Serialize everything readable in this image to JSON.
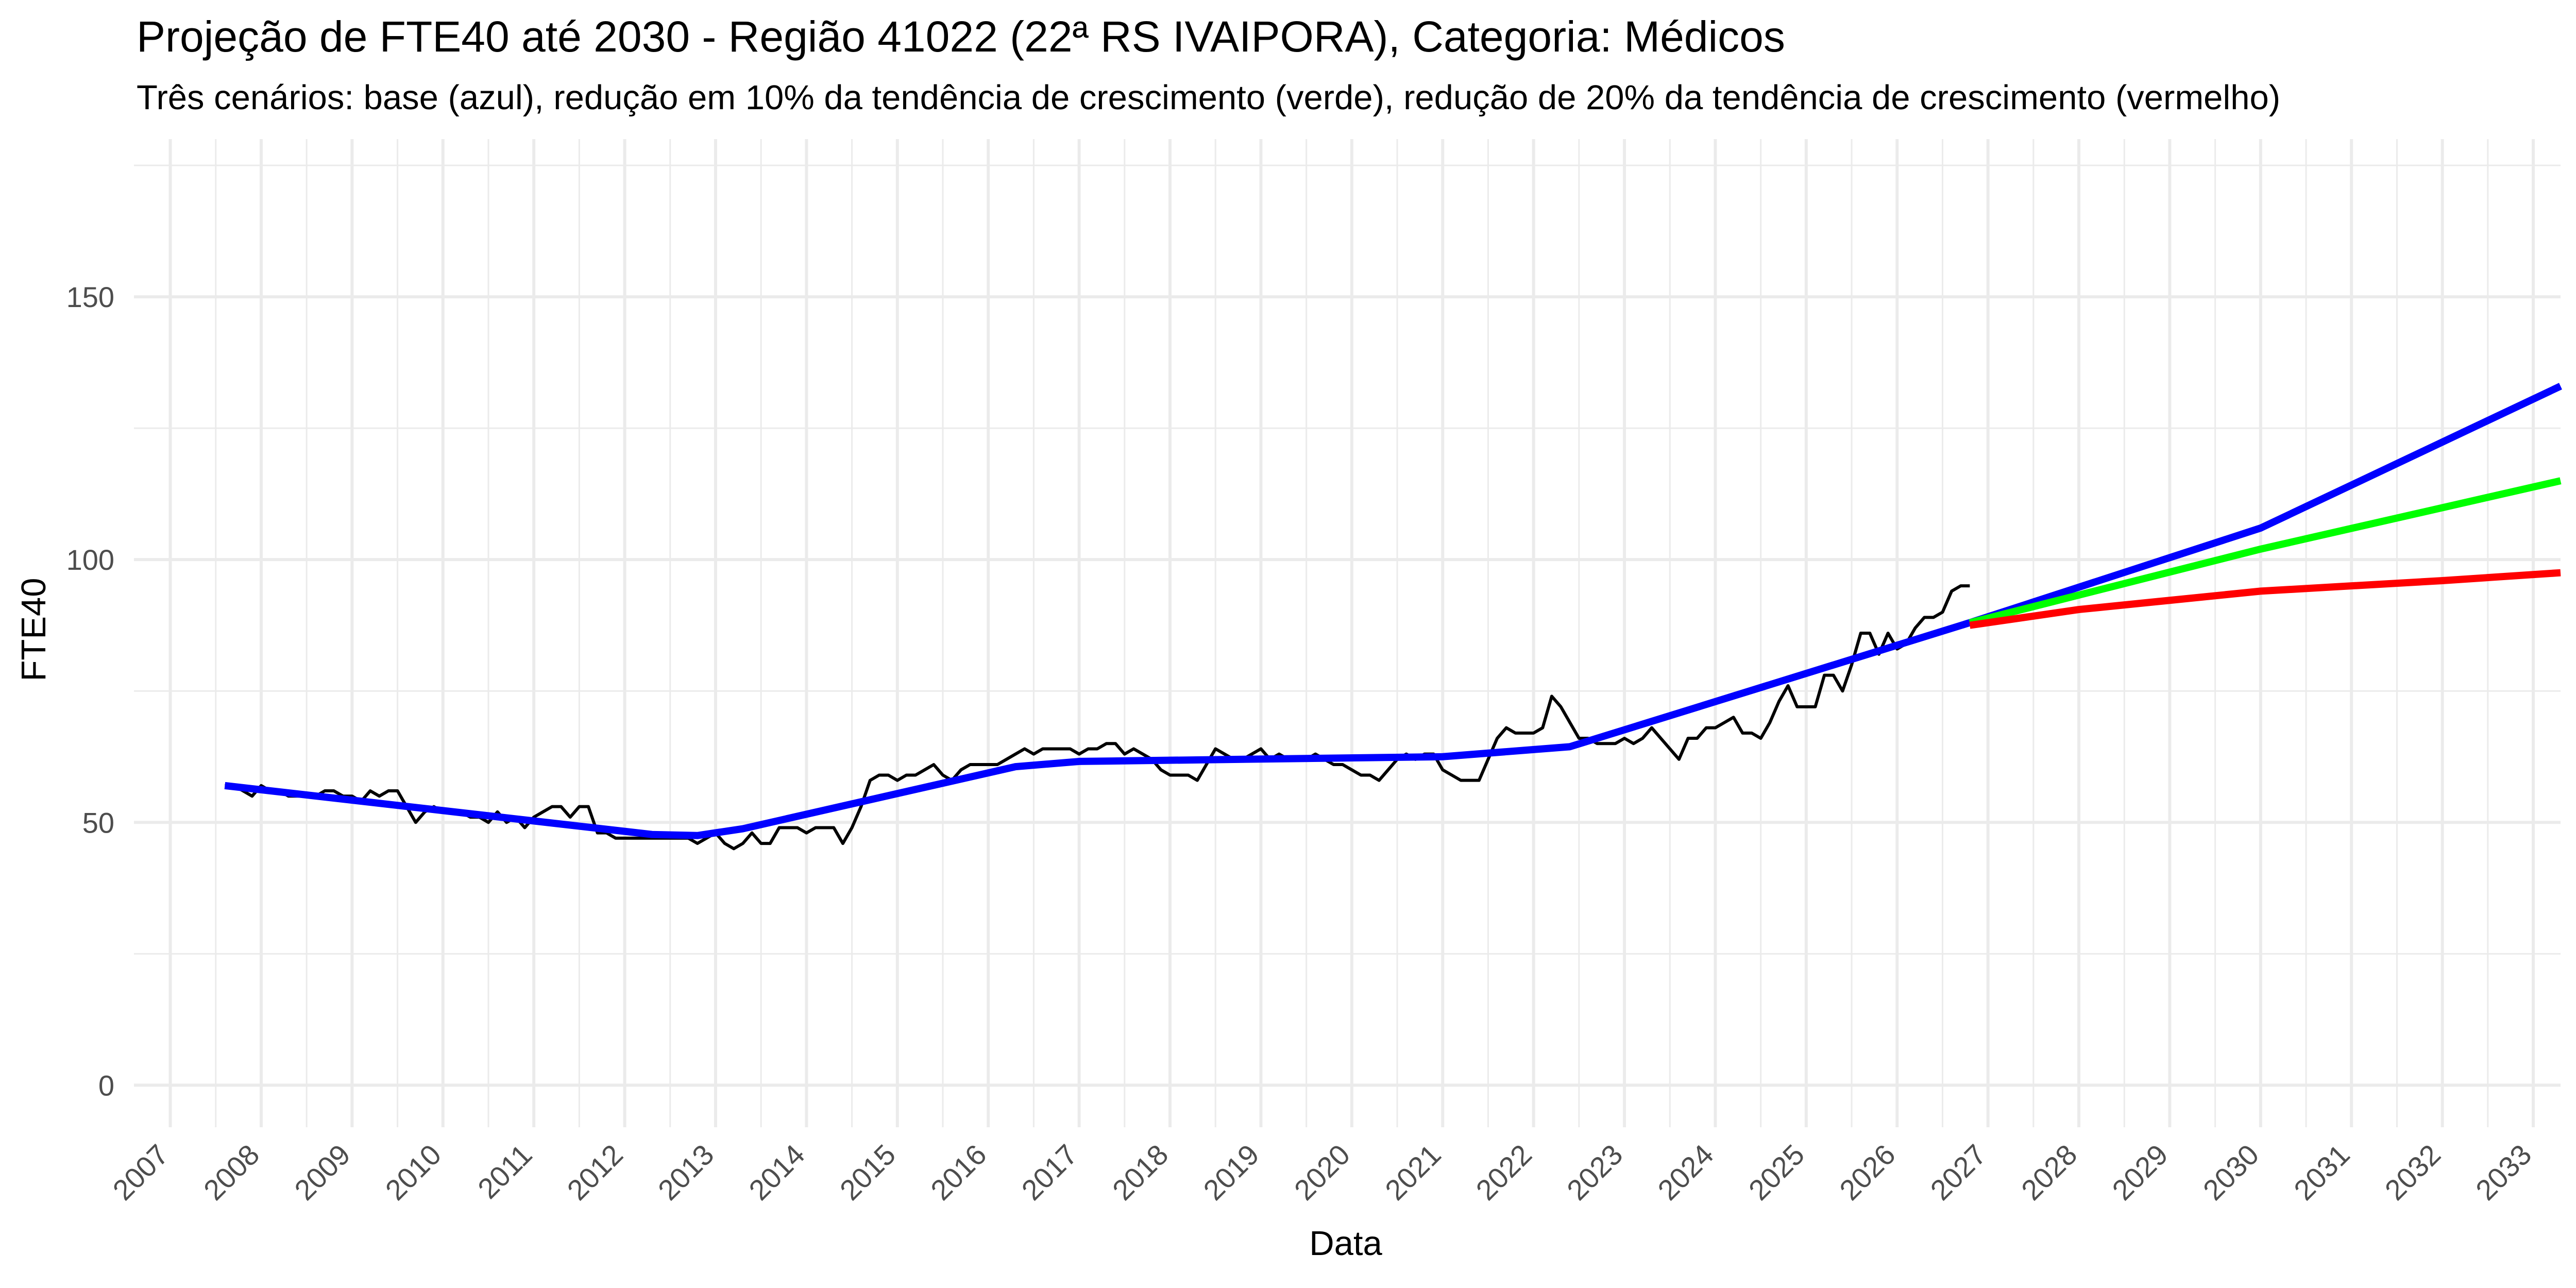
{
  "chart_data": {
    "type": "line",
    "title": "Projeção de FTE40 até 2030 - Região 41022 (22ª RS IVAIPORA), Categoria: Médicos",
    "subtitle": "Três cenários: base (azul), redução em 10% da tendência de crescimento (verde), redução de 20% da tendência de crescimento (vermelho)",
    "xlabel": "Data",
    "ylabel": "FTE40",
    "x_ticks": [
      "2007",
      "2008",
      "2009",
      "2010",
      "2011",
      "2012",
      "2013",
      "2014",
      "2015",
      "2016",
      "2017",
      "2018",
      "2019",
      "2020",
      "2021",
      "2022",
      "2023",
      "2024",
      "2025",
      "2026",
      "2027",
      "2028",
      "2029",
      "2030",
      "2031",
      "2032",
      "2033"
    ],
    "y_ticks": [
      "0",
      "50",
      "100",
      "150"
    ],
    "xlim": [
      2006.6,
      2033.3
    ],
    "ylim": [
      -8,
      180
    ],
    "grid": true,
    "legend": "none",
    "colors": {
      "observed": "#000000",
      "base": "#0000ff",
      "reduction_10": "#00ff00",
      "reduction_20": "#ff0000",
      "grid": "#ebebeb",
      "text": "#000000",
      "tick_text": "#4d4d4d"
    },
    "series": [
      {
        "key": "observed",
        "points": [
          [
            2007.6,
            57
          ],
          [
            2007.7,
            57
          ],
          [
            2007.8,
            56
          ],
          [
            2007.9,
            55
          ],
          [
            2008.0,
            57
          ],
          [
            2008.1,
            56
          ],
          [
            2008.2,
            56
          ],
          [
            2008.3,
            55
          ],
          [
            2008.4,
            55
          ],
          [
            2008.5,
            55
          ],
          [
            2008.6,
            55
          ],
          [
            2008.7,
            56
          ],
          [
            2008.8,
            56
          ],
          [
            2008.9,
            55
          ],
          [
            2009.0,
            55
          ],
          [
            2009.1,
            54
          ],
          [
            2009.2,
            56
          ],
          [
            2009.3,
            55
          ],
          [
            2009.4,
            56
          ],
          [
            2009.5,
            56
          ],
          [
            2009.6,
            53
          ],
          [
            2009.7,
            50
          ],
          [
            2009.8,
            52
          ],
          [
            2009.9,
            53
          ],
          [
            2010.0,
            52
          ],
          [
            2010.1,
            52
          ],
          [
            2010.2,
            52
          ],
          [
            2010.3,
            51
          ],
          [
            2010.4,
            51
          ],
          [
            2010.5,
            50
          ],
          [
            2010.6,
            52
          ],
          [
            2010.7,
            50
          ],
          [
            2010.8,
            51
          ],
          [
            2010.9,
            49
          ],
          [
            2011.0,
            51
          ],
          [
            2011.1,
            52
          ],
          [
            2011.2,
            53
          ],
          [
            2011.3,
            53
          ],
          [
            2011.4,
            51
          ],
          [
            2011.5,
            53
          ],
          [
            2011.6,
            53
          ],
          [
            2011.7,
            48
          ],
          [
            2011.8,
            48
          ],
          [
            2011.9,
            47
          ],
          [
            2012.0,
            47
          ],
          [
            2012.1,
            47
          ],
          [
            2012.2,
            47
          ],
          [
            2012.3,
            47
          ],
          [
            2012.4,
            47
          ],
          [
            2012.5,
            47
          ],
          [
            2012.6,
            47
          ],
          [
            2012.7,
            47
          ],
          [
            2012.8,
            46
          ],
          [
            2012.9,
            47
          ],
          [
            2013.0,
            48
          ],
          [
            2013.1,
            46
          ],
          [
            2013.2,
            45
          ],
          [
            2013.3,
            46
          ],
          [
            2013.4,
            48
          ],
          [
            2013.5,
            46
          ],
          [
            2013.6,
            46
          ],
          [
            2013.7,
            49
          ],
          [
            2013.8,
            49
          ],
          [
            2013.9,
            49
          ],
          [
            2014.0,
            48
          ],
          [
            2014.1,
            49
          ],
          [
            2014.2,
            49
          ],
          [
            2014.3,
            49
          ],
          [
            2014.4,
            46
          ],
          [
            2014.5,
            49
          ],
          [
            2014.6,
            53
          ],
          [
            2014.7,
            58
          ],
          [
            2014.8,
            59
          ],
          [
            2014.9,
            59
          ],
          [
            2015.0,
            58
          ],
          [
            2015.1,
            59
          ],
          [
            2015.2,
            59
          ],
          [
            2015.3,
            60
          ],
          [
            2015.4,
            61
          ],
          [
            2015.5,
            59
          ],
          [
            2015.6,
            58
          ],
          [
            2015.7,
            60
          ],
          [
            2015.8,
            61
          ],
          [
            2015.9,
            61
          ],
          [
            2016.0,
            61
          ],
          [
            2016.1,
            61
          ],
          [
            2016.2,
            62
          ],
          [
            2016.3,
            63
          ],
          [
            2016.4,
            64
          ],
          [
            2016.5,
            63
          ],
          [
            2016.6,
            64
          ],
          [
            2016.7,
            64
          ],
          [
            2016.8,
            64
          ],
          [
            2016.9,
            64
          ],
          [
            2017.0,
            63
          ],
          [
            2017.1,
            64
          ],
          [
            2017.2,
            64
          ],
          [
            2017.3,
            65
          ],
          [
            2017.4,
            65
          ],
          [
            2017.5,
            63
          ],
          [
            2017.6,
            64
          ],
          [
            2017.7,
            63
          ],
          [
            2017.8,
            62
          ],
          [
            2017.9,
            60
          ],
          [
            2018.0,
            59
          ],
          [
            2018.1,
            59
          ],
          [
            2018.2,
            59
          ],
          [
            2018.3,
            58
          ],
          [
            2018.4,
            61
          ],
          [
            2018.5,
            64
          ],
          [
            2018.6,
            63
          ],
          [
            2018.7,
            62
          ],
          [
            2018.8,
            62
          ],
          [
            2018.9,
            63
          ],
          [
            2019.0,
            64
          ],
          [
            2019.1,
            62
          ],
          [
            2019.2,
            63
          ],
          [
            2019.3,
            62
          ],
          [
            2019.4,
            62
          ],
          [
            2019.5,
            62
          ],
          [
            2019.6,
            63
          ],
          [
            2019.7,
            62
          ],
          [
            2019.8,
            61
          ],
          [
            2019.9,
            61
          ],
          [
            2020.0,
            60
          ],
          [
            2020.1,
            59
          ],
          [
            2020.2,
            59
          ],
          [
            2020.3,
            58
          ],
          [
            2020.4,
            60
          ],
          [
            2020.5,
            62
          ],
          [
            2020.6,
            63
          ],
          [
            2020.7,
            62
          ],
          [
            2020.8,
            63
          ],
          [
            2020.9,
            63
          ],
          [
            2021.0,
            60
          ],
          [
            2021.1,
            59
          ],
          [
            2021.2,
            58
          ],
          [
            2021.3,
            58
          ],
          [
            2021.4,
            58
          ],
          [
            2021.5,
            62
          ],
          [
            2021.6,
            66
          ],
          [
            2021.7,
            68
          ],
          [
            2021.8,
            67
          ],
          [
            2021.9,
            67
          ],
          [
            2022.0,
            67
          ],
          [
            2022.1,
            68
          ],
          [
            2022.2,
            74
          ],
          [
            2022.3,
            72
          ],
          [
            2022.4,
            69
          ],
          [
            2022.5,
            66
          ],
          [
            2022.6,
            66
          ],
          [
            2022.7,
            65
          ],
          [
            2022.8,
            65
          ],
          [
            2022.9,
            65
          ],
          [
            2023.0,
            66
          ],
          [
            2023.1,
            65
          ],
          [
            2023.2,
            66
          ],
          [
            2023.3,
            68
          ],
          [
            2023.4,
            66
          ],
          [
            2023.5,
            64
          ],
          [
            2023.6,
            62
          ],
          [
            2023.7,
            66
          ],
          [
            2023.8,
            66
          ],
          [
            2023.9,
            68
          ],
          [
            2024.0,
            68
          ],
          [
            2024.1,
            69
          ],
          [
            2024.2,
            70
          ],
          [
            2024.3,
            67
          ],
          [
            2024.4,
            67
          ],
          [
            2024.5,
            66
          ],
          [
            2024.6,
            69
          ],
          [
            2024.7,
            73
          ],
          [
            2024.8,
            76
          ],
          [
            2024.9,
            72
          ],
          [
            2025.0,
            72
          ],
          [
            2025.1,
            72
          ],
          [
            2025.2,
            78
          ],
          [
            2025.3,
            78
          ],
          [
            2025.4,
            75
          ],
          [
            2025.5,
            80
          ],
          [
            2025.6,
            86
          ],
          [
            2025.7,
            86
          ],
          [
            2025.8,
            82
          ],
          [
            2025.9,
            86
          ],
          [
            2026.0,
            83
          ],
          [
            2026.1,
            84
          ],
          [
            2026.2,
            87
          ],
          [
            2026.3,
            89
          ],
          [
            2026.4,
            89
          ],
          [
            2026.5,
            90
          ],
          [
            2026.6,
            94
          ],
          [
            2026.7,
            95
          ],
          [
            2026.8,
            95
          ]
        ]
      },
      {
        "key": "base",
        "points": [
          [
            2007.6,
            57
          ],
          [
            2012.3,
            47.7
          ],
          [
            2012.8,
            47.5
          ],
          [
            2013.3,
            48.8
          ],
          [
            2016.3,
            60.6
          ],
          [
            2017.0,
            61.6
          ],
          [
            2021.0,
            62.5
          ],
          [
            2022.4,
            64.4
          ],
          [
            2026.8,
            88
          ],
          [
            2030.0,
            106
          ],
          [
            2033.3,
            133
          ]
        ]
      },
      {
        "key": "reduction_10",
        "points": [
          [
            2026.8,
            88
          ],
          [
            2030.0,
            102
          ],
          [
            2033.3,
            115
          ]
        ]
      },
      {
        "key": "reduction_20",
        "points": [
          [
            2026.8,
            87.5
          ],
          [
            2028.0,
            90.5
          ],
          [
            2030.0,
            94
          ],
          [
            2032.0,
            96
          ],
          [
            2033.3,
            97.5
          ]
        ]
      }
    ]
  }
}
